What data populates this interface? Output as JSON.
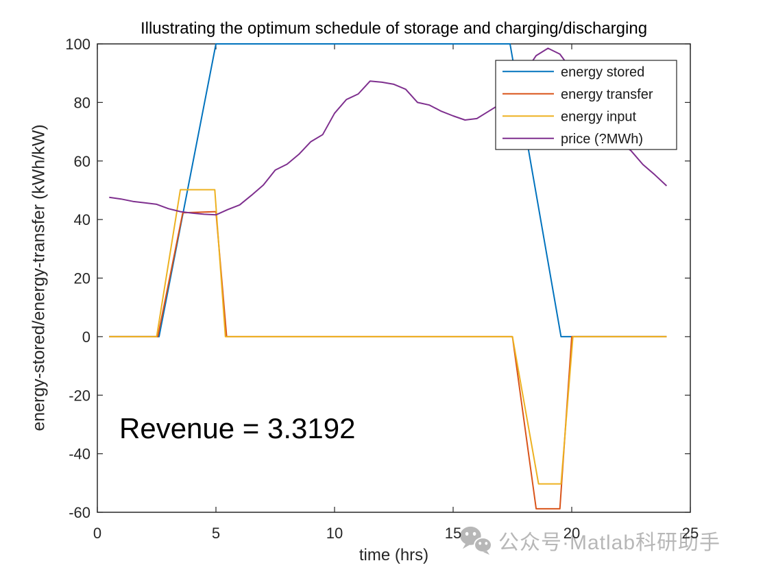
{
  "chart_data": {
    "type": "line",
    "title": "Illustrating the optimum schedule of storage and charging/discharging",
    "xlabel": "time (hrs)",
    "ylabel": "energy-stored/energy-transfer (kWh/kW)",
    "xlim": [
      0,
      25
    ],
    "ylim": [
      -60,
      100
    ],
    "xticks": [
      0,
      5,
      10,
      15,
      20,
      25
    ],
    "yticks": [
      -60,
      -40,
      -20,
      0,
      20,
      40,
      60,
      80,
      100
    ],
    "grid": false,
    "axis_color": "#262626",
    "legend": {
      "position": "upper-right",
      "border": true
    },
    "annotation": {
      "text": "Revenue = 3.3192"
    },
    "series": [
      {
        "name": "energy stored",
        "color": "#0072BD",
        "points": [
          [
            0.5,
            0
          ],
          [
            2.6,
            0
          ],
          [
            5.0,
            100
          ],
          [
            17.4,
            100
          ],
          [
            19.55,
            0
          ],
          [
            24,
            0
          ]
        ]
      },
      {
        "name": "energy transfer",
        "color": "#D95319",
        "points": [
          [
            0.5,
            0
          ],
          [
            2.55,
            0
          ],
          [
            3.6,
            42.3
          ],
          [
            5.0,
            42.7
          ],
          [
            5.45,
            0
          ],
          [
            17.5,
            0
          ],
          [
            18.5,
            -58.8
          ],
          [
            19.5,
            -58.8
          ],
          [
            20.0,
            0
          ],
          [
            24,
            0
          ]
        ]
      },
      {
        "name": "energy input",
        "color": "#EDB120",
        "points": [
          [
            0.5,
            0
          ],
          [
            2.5,
            0
          ],
          [
            3.5,
            50.2
          ],
          [
            4.95,
            50.2
          ],
          [
            5.4,
            0
          ],
          [
            17.5,
            0
          ],
          [
            18.6,
            -50.3
          ],
          [
            19.55,
            -50.3
          ],
          [
            20.05,
            0
          ],
          [
            24,
            0
          ]
        ]
      },
      {
        "name": "price (?MWh)",
        "color": "#7E2F8E",
        "points": [
          [
            0.5,
            47.6
          ],
          [
            1,
            47
          ],
          [
            1.5,
            46.2
          ],
          [
            2,
            45.7
          ],
          [
            2.5,
            45.2
          ],
          [
            3,
            43.7
          ],
          [
            3.5,
            42.7
          ],
          [
            4,
            42.2
          ],
          [
            4.5,
            41.8
          ],
          [
            5,
            41.6
          ],
          [
            5.5,
            43.4
          ],
          [
            6,
            45
          ],
          [
            6.5,
            48.3
          ],
          [
            7,
            51.8
          ],
          [
            7.5,
            56.9
          ],
          [
            8,
            58.9
          ],
          [
            8.5,
            62.3
          ],
          [
            9,
            66.6
          ],
          [
            9.5,
            69
          ],
          [
            10,
            76.3
          ],
          [
            10.5,
            81
          ],
          [
            11,
            82.9
          ],
          [
            11.5,
            87.3
          ],
          [
            12,
            86.9
          ],
          [
            12.5,
            86.2
          ],
          [
            13,
            84.5
          ],
          [
            13.5,
            80
          ],
          [
            14,
            79.1
          ],
          [
            14.5,
            77
          ],
          [
            15,
            75.4
          ],
          [
            15.5,
            74
          ],
          [
            16,
            74.5
          ],
          [
            16.5,
            77
          ],
          [
            17,
            79.5
          ],
          [
            17.5,
            84
          ],
          [
            18,
            90
          ],
          [
            18.5,
            96
          ],
          [
            19,
            98.5
          ],
          [
            19.5,
            96.5
          ],
          [
            20,
            91
          ],
          [
            20.5,
            84
          ],
          [
            21,
            77
          ],
          [
            21.5,
            71
          ],
          [
            22,
            66.5
          ],
          [
            22.5,
            63.5
          ],
          [
            23,
            58.8
          ],
          [
            23.5,
            55.3
          ],
          [
            24,
            51.5
          ]
        ]
      }
    ]
  },
  "watermark": {
    "text": "公众号·Matlab科研助手",
    "color": "#b7b7b7",
    "icon": "wechat-icon"
  }
}
